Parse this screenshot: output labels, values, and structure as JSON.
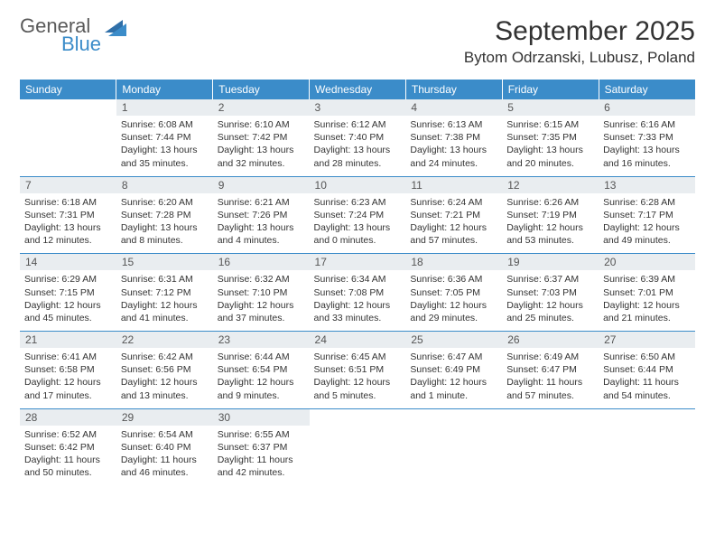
{
  "brand": {
    "word1": "General",
    "word2": "Blue",
    "color1": "#5a5a5a",
    "color2": "#3b8cc9"
  },
  "header": {
    "title": "September 2025",
    "location": "Bytom Odrzanski, Lubusz, Poland"
  },
  "dayNames": [
    "Sunday",
    "Monday",
    "Tuesday",
    "Wednesday",
    "Thursday",
    "Friday",
    "Saturday"
  ],
  "style": {
    "headerBg": "#3b8cc9",
    "headerFg": "#ffffff",
    "dayNumBg": "#e9edf0",
    "dayNumFg": "#555555",
    "rowBorder": "#3b8cc9",
    "bodyFont": "Arial",
    "titleFontSize": 30,
    "locationFontSize": 17,
    "dayNameFontSize": 12,
    "cellFontSize": 10.5
  },
  "firstWeekday": 1,
  "days": [
    {
      "n": 1,
      "sunrise": "6:08 AM",
      "sunset": "7:44 PM",
      "daylight": "13 hours and 35 minutes."
    },
    {
      "n": 2,
      "sunrise": "6:10 AM",
      "sunset": "7:42 PM",
      "daylight": "13 hours and 32 minutes."
    },
    {
      "n": 3,
      "sunrise": "6:12 AM",
      "sunset": "7:40 PM",
      "daylight": "13 hours and 28 minutes."
    },
    {
      "n": 4,
      "sunrise": "6:13 AM",
      "sunset": "7:38 PM",
      "daylight": "13 hours and 24 minutes."
    },
    {
      "n": 5,
      "sunrise": "6:15 AM",
      "sunset": "7:35 PM",
      "daylight": "13 hours and 20 minutes."
    },
    {
      "n": 6,
      "sunrise": "6:16 AM",
      "sunset": "7:33 PM",
      "daylight": "13 hours and 16 minutes."
    },
    {
      "n": 7,
      "sunrise": "6:18 AM",
      "sunset": "7:31 PM",
      "daylight": "13 hours and 12 minutes."
    },
    {
      "n": 8,
      "sunrise": "6:20 AM",
      "sunset": "7:28 PM",
      "daylight": "13 hours and 8 minutes."
    },
    {
      "n": 9,
      "sunrise": "6:21 AM",
      "sunset": "7:26 PM",
      "daylight": "13 hours and 4 minutes."
    },
    {
      "n": 10,
      "sunrise": "6:23 AM",
      "sunset": "7:24 PM",
      "daylight": "13 hours and 0 minutes."
    },
    {
      "n": 11,
      "sunrise": "6:24 AM",
      "sunset": "7:21 PM",
      "daylight": "12 hours and 57 minutes."
    },
    {
      "n": 12,
      "sunrise": "6:26 AM",
      "sunset": "7:19 PM",
      "daylight": "12 hours and 53 minutes."
    },
    {
      "n": 13,
      "sunrise": "6:28 AM",
      "sunset": "7:17 PM",
      "daylight": "12 hours and 49 minutes."
    },
    {
      "n": 14,
      "sunrise": "6:29 AM",
      "sunset": "7:15 PM",
      "daylight": "12 hours and 45 minutes."
    },
    {
      "n": 15,
      "sunrise": "6:31 AM",
      "sunset": "7:12 PM",
      "daylight": "12 hours and 41 minutes."
    },
    {
      "n": 16,
      "sunrise": "6:32 AM",
      "sunset": "7:10 PM",
      "daylight": "12 hours and 37 minutes."
    },
    {
      "n": 17,
      "sunrise": "6:34 AM",
      "sunset": "7:08 PM",
      "daylight": "12 hours and 33 minutes."
    },
    {
      "n": 18,
      "sunrise": "6:36 AM",
      "sunset": "7:05 PM",
      "daylight": "12 hours and 29 minutes."
    },
    {
      "n": 19,
      "sunrise": "6:37 AM",
      "sunset": "7:03 PM",
      "daylight": "12 hours and 25 minutes."
    },
    {
      "n": 20,
      "sunrise": "6:39 AM",
      "sunset": "7:01 PM",
      "daylight": "12 hours and 21 minutes."
    },
    {
      "n": 21,
      "sunrise": "6:41 AM",
      "sunset": "6:58 PM",
      "daylight": "12 hours and 17 minutes."
    },
    {
      "n": 22,
      "sunrise": "6:42 AM",
      "sunset": "6:56 PM",
      "daylight": "12 hours and 13 minutes."
    },
    {
      "n": 23,
      "sunrise": "6:44 AM",
      "sunset": "6:54 PM",
      "daylight": "12 hours and 9 minutes."
    },
    {
      "n": 24,
      "sunrise": "6:45 AM",
      "sunset": "6:51 PM",
      "daylight": "12 hours and 5 minutes."
    },
    {
      "n": 25,
      "sunrise": "6:47 AM",
      "sunset": "6:49 PM",
      "daylight": "12 hours and 1 minute."
    },
    {
      "n": 26,
      "sunrise": "6:49 AM",
      "sunset": "6:47 PM",
      "daylight": "11 hours and 57 minutes."
    },
    {
      "n": 27,
      "sunrise": "6:50 AM",
      "sunset": "6:44 PM",
      "daylight": "11 hours and 54 minutes."
    },
    {
      "n": 28,
      "sunrise": "6:52 AM",
      "sunset": "6:42 PM",
      "daylight": "11 hours and 50 minutes."
    },
    {
      "n": 29,
      "sunrise": "6:54 AM",
      "sunset": "6:40 PM",
      "daylight": "11 hours and 46 minutes."
    },
    {
      "n": 30,
      "sunrise": "6:55 AM",
      "sunset": "6:37 PM",
      "daylight": "11 hours and 42 minutes."
    }
  ],
  "labels": {
    "sunrise": "Sunrise:",
    "sunset": "Sunset:",
    "daylight": "Daylight:"
  }
}
